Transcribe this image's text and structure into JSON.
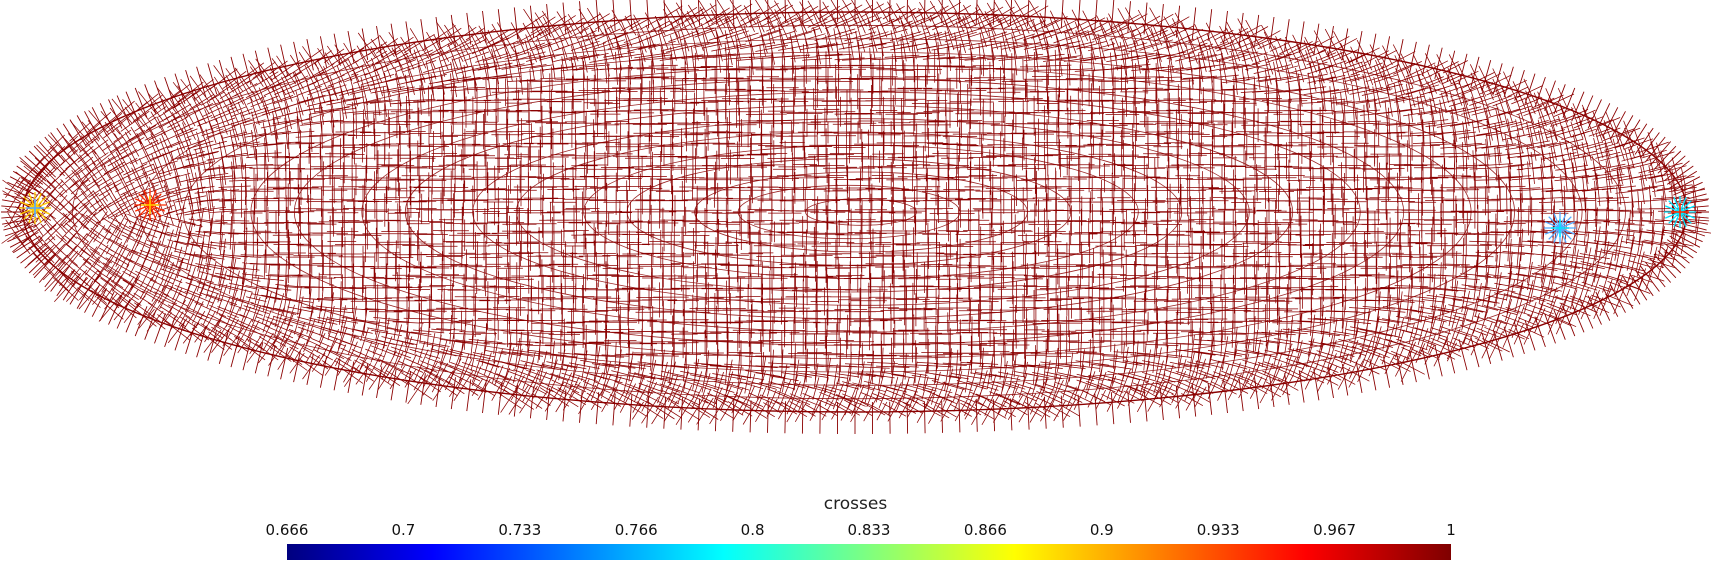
{
  "legend": {
    "title": "crosses",
    "ticks": [
      "0.666",
      "0.7",
      "0.733",
      "0.766",
      "0.8",
      "0.833",
      "0.866",
      "0.9",
      "0.933",
      "0.967",
      "1"
    ],
    "range": [
      0.666,
      1
    ],
    "colormap": [
      "#00007f",
      "#0000ff",
      "#007fff",
      "#00ffff",
      "#7fff7f",
      "#ffff00",
      "#ff7f00",
      "#ff0000",
      "#7f0000"
    ]
  },
  "scene": {
    "shape": "ellipse",
    "field_color": "#8b0000",
    "hotspot_colors": [
      "#ff2a00",
      "#ffcc00",
      "#55aaff",
      "#00e5ff"
    ]
  }
}
